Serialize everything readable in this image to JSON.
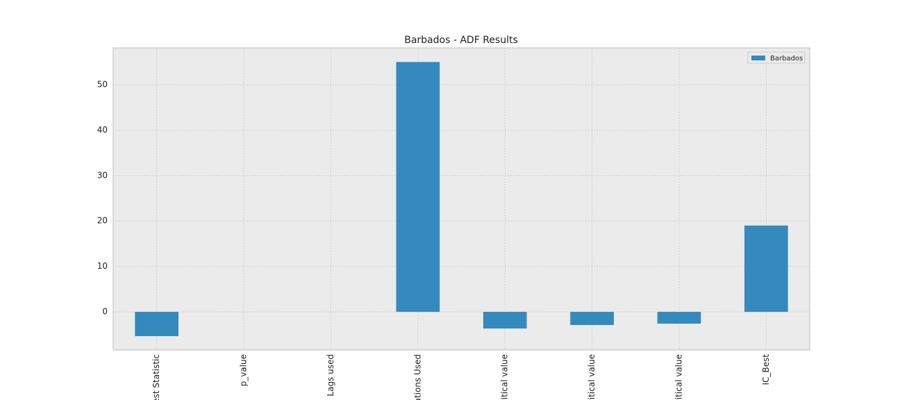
{
  "chart_data": {
    "type": "bar",
    "title": "Barbados - ADF Results",
    "categories": [
      "est Statistic",
      "p_value",
      "Lags used",
      "ations Used",
      "ritical value",
      "ritical value",
      "ritical value",
      "IC_Best"
    ],
    "series": [
      {
        "name": "Barbados",
        "color": "#348abd",
        "values": [
          -5.35,
          0,
          0,
          55,
          -3.67,
          -2.9,
          -2.6,
          19
        ]
      }
    ],
    "ylim": [
      -8.4,
      58.1
    ],
    "yticks": [
      0,
      10,
      20,
      30,
      40,
      50
    ],
    "grid": true,
    "legend": "upper right"
  }
}
